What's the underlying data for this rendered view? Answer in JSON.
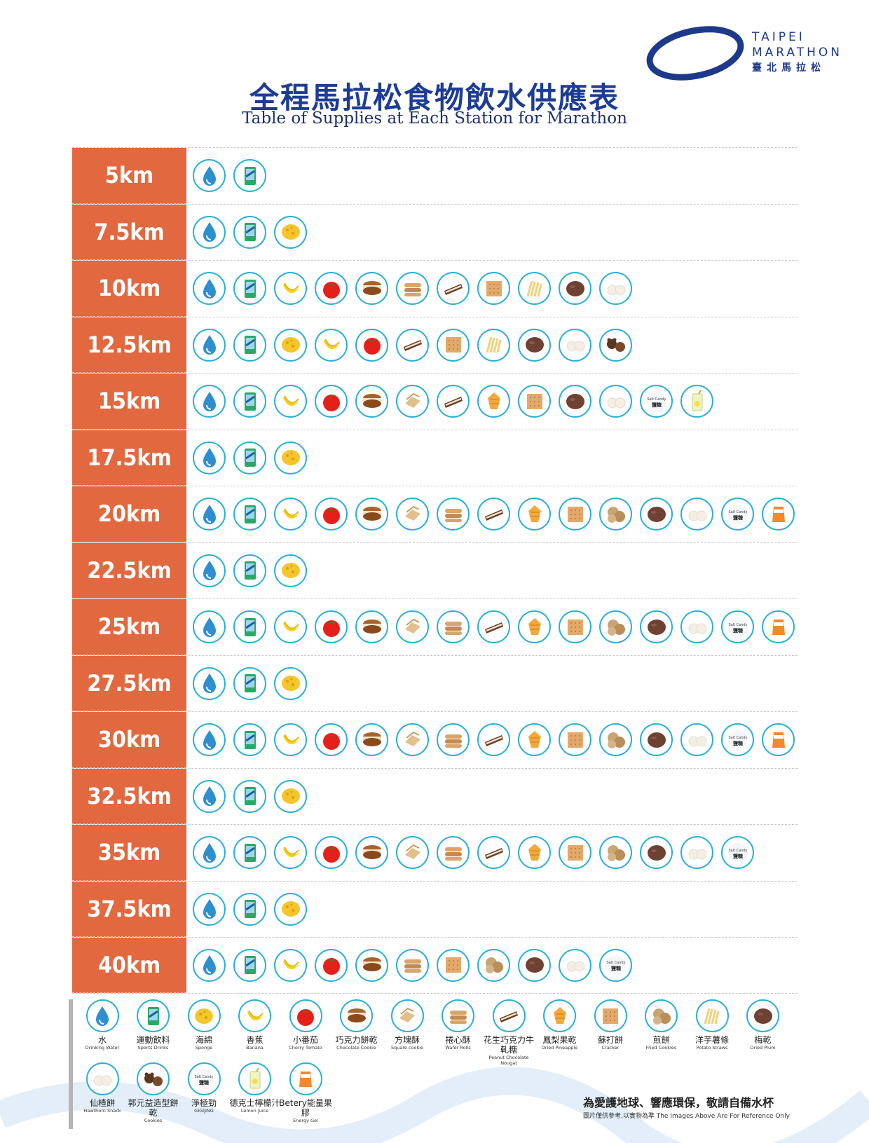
{
  "header": {
    "logo_line1": "TAIPEI",
    "logo_line2": "MARATHON",
    "logo_line3": "臺北馬拉松",
    "title_zh": "全程馬拉松食物飲水供應表",
    "title_en": "Table of Supplies at Each Station for Marathon"
  },
  "colors": {
    "accent": "#e2683f",
    "icon_border": "#2bb0d6",
    "title": "#1c3c96"
  },
  "stations": [
    {
      "km": "5km",
      "items": [
        "water",
        "sports"
      ]
    },
    {
      "km": "7.5km",
      "items": [
        "water",
        "sports",
        "sponge"
      ]
    },
    {
      "km": "10km",
      "items": [
        "water",
        "sports",
        "banana",
        "tomato",
        "choco",
        "wafer",
        "nougat",
        "cracker",
        "potato",
        "plum",
        "hawthorn"
      ]
    },
    {
      "km": "12.5km",
      "items": [
        "water",
        "sports",
        "sponge",
        "banana",
        "tomato",
        "nougat",
        "cracker",
        "potato",
        "plum",
        "hawthorn",
        "bear"
      ]
    },
    {
      "km": "15km",
      "items": [
        "water",
        "sports",
        "banana",
        "tomato",
        "choco",
        "square",
        "nougat",
        "pineapple",
        "cracker",
        "plum",
        "hawthorn",
        "salt",
        "lemon"
      ]
    },
    {
      "km": "17.5km",
      "items": [
        "water",
        "sports",
        "sponge"
      ]
    },
    {
      "km": "20km",
      "items": [
        "water",
        "sports",
        "banana",
        "tomato",
        "choco",
        "square",
        "wafer",
        "nougat",
        "pineapple",
        "cracker",
        "fried",
        "plum",
        "hawthorn",
        "salt",
        "gel"
      ]
    },
    {
      "km": "22.5km",
      "items": [
        "water",
        "sports",
        "sponge"
      ]
    },
    {
      "km": "25km",
      "items": [
        "water",
        "sports",
        "banana",
        "tomato",
        "choco",
        "square",
        "wafer",
        "nougat",
        "pineapple",
        "cracker",
        "fried",
        "plum",
        "hawthorn",
        "salt",
        "gel"
      ]
    },
    {
      "km": "27.5km",
      "items": [
        "water",
        "sports",
        "sponge"
      ]
    },
    {
      "km": "30km",
      "items": [
        "water",
        "sports",
        "banana",
        "tomato",
        "choco",
        "square",
        "wafer",
        "nougat",
        "pineapple",
        "cracker",
        "fried",
        "plum",
        "hawthorn",
        "salt",
        "gel"
      ]
    },
    {
      "km": "32.5km",
      "items": [
        "water",
        "sports",
        "sponge"
      ]
    },
    {
      "km": "35km",
      "items": [
        "water",
        "sports",
        "banana",
        "tomato",
        "choco",
        "square",
        "wafer",
        "nougat",
        "pineapple",
        "cracker",
        "fried",
        "plum",
        "hawthorn",
        "salt"
      ]
    },
    {
      "km": "37.5km",
      "items": [
        "water",
        "sports",
        "sponge"
      ]
    },
    {
      "km": "40km",
      "items": [
        "water",
        "sports",
        "banana",
        "tomato",
        "choco",
        "wafer",
        "cracker",
        "fried",
        "plum",
        "hawthorn",
        "salt"
      ]
    }
  ],
  "legend": [
    {
      "id": "water",
      "zh": "水",
      "en": "Drinking Water"
    },
    {
      "id": "sports",
      "zh": "運動飲料",
      "en": "Sports Drinks"
    },
    {
      "id": "sponge",
      "zh": "海綿",
      "en": "Sponge"
    },
    {
      "id": "banana",
      "zh": "香蕉",
      "en": "Banana"
    },
    {
      "id": "tomato",
      "zh": "小番茄",
      "en": "Cherry Tomato"
    },
    {
      "id": "choco",
      "zh": "巧克力餅乾",
      "en": "Chocolate Cookie"
    },
    {
      "id": "square",
      "zh": "方塊酥",
      "en": "Square cookie"
    },
    {
      "id": "wafer",
      "zh": "捲心酥",
      "en": "Wafer Rolls"
    },
    {
      "id": "nougat",
      "zh": "花生巧克力牛軋糖",
      "en": "Peanut Chocolate Nougat"
    },
    {
      "id": "pineapple",
      "zh": "鳳梨果乾",
      "en": "Dried Pineapple"
    },
    {
      "id": "cracker",
      "zh": "蘇打餅",
      "en": "Cracker"
    },
    {
      "id": "fried",
      "zh": "煎餅",
      "en": "Fried Cookies"
    },
    {
      "id": "potato",
      "zh": "洋芋薯條",
      "en": "Potato Straws"
    },
    {
      "id": "plum",
      "zh": "梅乾",
      "en": "Dried Plum"
    },
    {
      "id": "hawthorn",
      "zh": "仙楂餅",
      "en": "Hawthorn Snack"
    },
    {
      "id": "bear",
      "zh": "郭元益造型餅乾",
      "en": "Cookies"
    },
    {
      "id": "salt",
      "zh": "淨極勁",
      "en": "GIGIJING"
    },
    {
      "id": "lemon",
      "zh": "德克士檸檬汁",
      "en": "Lemon juice"
    },
    {
      "id": "gel",
      "zh": "Betery能量果膠",
      "en": "Energy Gel"
    }
  ],
  "salt_label_en": "Salt Candy",
  "salt_label_zh": "鹽糖",
  "footer": {
    "notice": "為愛護地球、響應環保，敬請自備水杯",
    "disclaimer": "圖片僅供參考,以實物為準 The Images Above Are For Reference Only"
  }
}
